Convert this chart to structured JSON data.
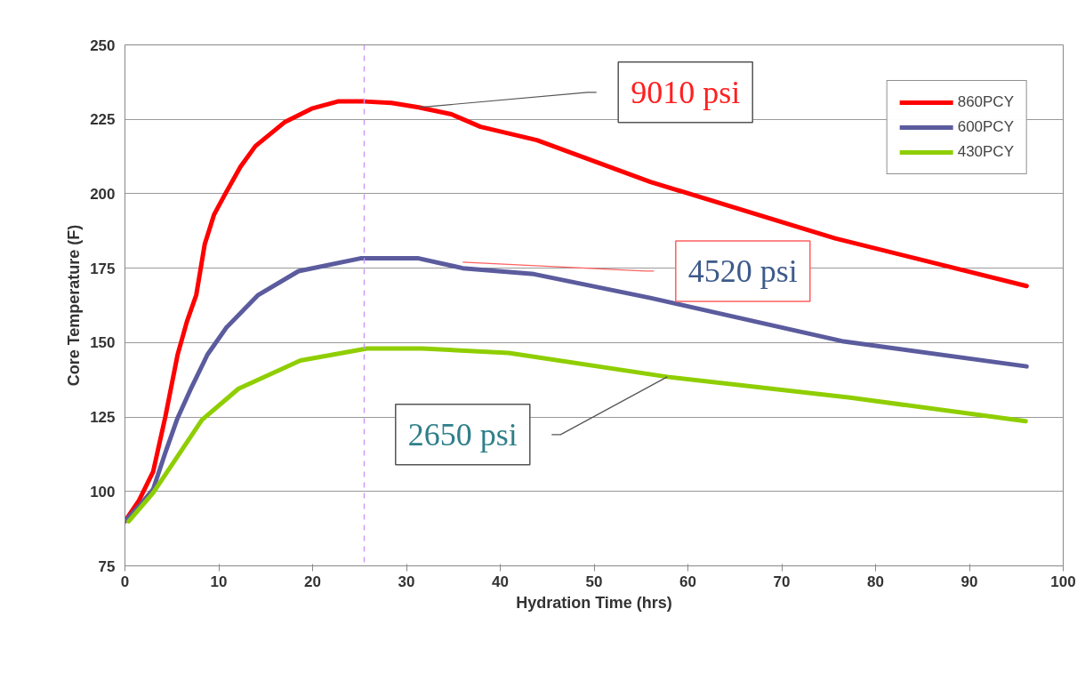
{
  "chart_data": {
    "type": "line",
    "xlabel": "Hydration Time (hrs)",
    "ylabel": "Core Temperature (F)",
    "xlim": [
      0,
      100
    ],
    "xticks": [
      0,
      10,
      20,
      30,
      40,
      50,
      60,
      70,
      80,
      90,
      100
    ],
    "ylim": [
      75,
      250
    ],
    "yticks": [
      75,
      100,
      125,
      150,
      175,
      200,
      225,
      250
    ],
    "grid": "y",
    "legend": "top right",
    "marker": "none",
    "line_style": "solid",
    "series": [
      {
        "name": "860PCY",
        "color": "#ff0000",
        "x": [
          0,
          1.5,
          3,
          4.3,
          5.6,
          6.6,
          7.6,
          8.5,
          9.5,
          10.7,
          12.3,
          13.9,
          17,
          19.9,
          22.7,
          25.5,
          28.4,
          31.3,
          34.8,
          37.9,
          43.9,
          56,
          75.7,
          96.1
        ],
        "values": [
          90,
          97,
          106.6,
          125,
          145.8,
          157,
          166,
          183,
          193,
          200,
          209,
          216,
          224,
          228.6,
          231,
          231,
          230.5,
          229,
          226.7,
          222.5,
          218,
          204,
          185,
          169
        ]
      },
      {
        "name": "600PCY",
        "color": "#5b5b9e",
        "x": [
          0,
          1.5,
          3,
          4.3,
          5.6,
          7.1,
          8.8,
          10.8,
          14.2,
          18.5,
          25.1,
          31.3,
          36,
          43.6,
          56,
          76.4,
          96.1
        ],
        "values": [
          90,
          95,
          100.7,
          113,
          124.6,
          135,
          146,
          155,
          166,
          174,
          178.3,
          178.3,
          175,
          173,
          165,
          150.5,
          142
        ]
      },
      {
        "name": "430PCY",
        "color": "#8fce00",
        "x": [
          0.4,
          3,
          8.2,
          12.1,
          18.7,
          25.8,
          31.7,
          40.9,
          57.8,
          77.3,
          96
        ],
        "values": [
          90,
          99.5,
          124,
          134.5,
          144,
          148,
          148,
          146.5,
          138.5,
          131.5,
          123.6
        ]
      }
    ],
    "ref_lines": [
      {
        "axis": "x",
        "value": 25.5,
        "color": "#cc99ff",
        "line_style": "dashed"
      }
    ],
    "annotations": [
      {
        "text": "9010 psi",
        "x": 31.3,
        "y": 229
      },
      {
        "text": "4520 psi",
        "x": 36,
        "y": 177
      },
      {
        "text": "2650 psi",
        "x": 57.8,
        "y": 138.5
      }
    ]
  }
}
